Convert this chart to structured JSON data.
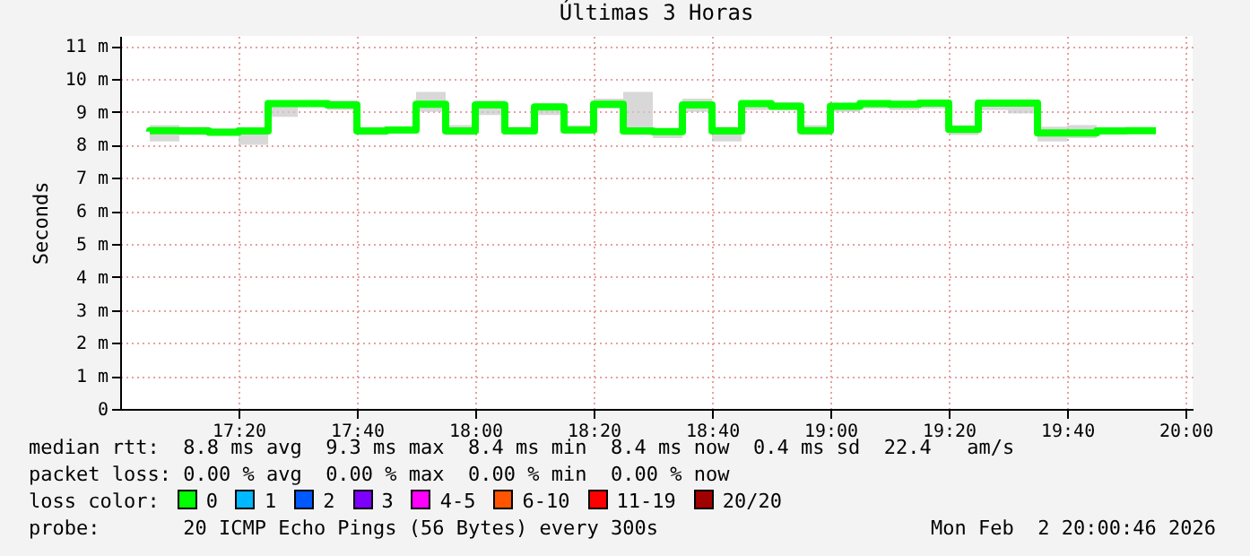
{
  "chart_data": {
    "type": "step",
    "title": "Últimas 3 Horas",
    "ylabel": "Seconds",
    "x": [
      17.0833,
      17.1667,
      17.25,
      17.3333,
      17.4167,
      17.5,
      17.5833,
      17.6667,
      17.75,
      17.8333,
      17.9167,
      18,
      18.0833,
      18.1667,
      18.25,
      18.3333,
      18.4167,
      18.5,
      18.5833,
      18.6667,
      18.75,
      18.8333,
      18.9167,
      19,
      19.0833,
      19.1667,
      19.25,
      19.3333,
      19.4167,
      19.5,
      19.5833,
      19.6667,
      19.75,
      19.8333,
      19.9167
    ],
    "series": [
      {
        "color": "#00ff00",
        "values": [
          8.4,
          8.43,
          8.42,
          8.38,
          8.42,
          9.25,
          9.25,
          9.21,
          8.42,
          8.45,
          9.23,
          8.42,
          9.21,
          8.42,
          9.15,
          8.45,
          9.23,
          8.42,
          8.4,
          9.21,
          8.42,
          9.25,
          9.17,
          8.43,
          9.17,
          9.25,
          9.23,
          9.26,
          8.47,
          9.26,
          9.26,
          8.36,
          8.36,
          8.42,
          8.43
        ],
        "lower": [
          8.35,
          8.1,
          8.3,
          8.3,
          8.0,
          8.85,
          9.2,
          9.05,
          8.3,
          8.4,
          9.0,
          8.3,
          8.9,
          8.4,
          8.9,
          8.4,
          9.1,
          8.3,
          8.2,
          9.0,
          8.1,
          9.05,
          9.05,
          8.3,
          9.0,
          9.1,
          9.05,
          9.1,
          8.3,
          9.05,
          8.95,
          8.1,
          8.2,
          8.35,
          8.4
        ],
        "upper": [
          8.45,
          8.6,
          8.55,
          8.5,
          8.45,
          9.3,
          9.3,
          9.35,
          8.45,
          8.5,
          9.6,
          8.6,
          9.35,
          8.55,
          9.25,
          8.6,
          9.4,
          9.6,
          8.45,
          9.4,
          8.55,
          9.3,
          9.3,
          8.6,
          9.2,
          9.3,
          9.3,
          9.35,
          8.6,
          9.35,
          9.3,
          8.55,
          8.6,
          8.5,
          8.5
        ]
      }
    ],
    "xlim": [
      17,
      20.02
    ],
    "xticks": [
      {
        "value": 17.3333,
        "label": "17:20"
      },
      {
        "value": 17.6667,
        "label": "17:40"
      },
      {
        "value": 18,
        "label": "18:00"
      },
      {
        "value": 18.3333,
        "label": "18:20"
      },
      {
        "value": 18.6667,
        "label": "18:40"
      },
      {
        "value": 19,
        "label": "19:00"
      },
      {
        "value": 19.3333,
        "label": "19:20"
      },
      {
        "value": 19.6667,
        "label": "19:40"
      },
      {
        "value": 20,
        "label": "20:00"
      }
    ],
    "ylim": [
      0,
      11.3
    ],
    "yticks": [
      0,
      {
        "value": 1,
        "label": "1 m"
      },
      {
        "value": 2,
        "label": "2 m"
      },
      {
        "value": 3,
        "label": "3 m"
      },
      {
        "value": 4,
        "label": "4 m"
      },
      {
        "value": 5,
        "label": "5 m"
      },
      {
        "value": 6,
        "label": "6 m"
      },
      {
        "value": 7,
        "label": "7 m"
      },
      {
        "value": 8,
        "label": "8 m"
      },
      {
        "value": 9,
        "label": "9 m"
      },
      {
        "value": 10,
        "label": "10 m"
      },
      {
        "value": 11,
        "label": "11 m"
      }
    ],
    "grid": true,
    "annotations": [
      "median rtt:  8.8 ms avg  9.3 ms max  8.4 ms min  8.4 ms now  0.4 ms sd  22.4   am/s",
      "packet loss: 0.00 % avg  0.00 % max  0.00 % min  0.00 % now",
      "loss color:",
      "0",
      "1",
      "2",
      "3",
      "4-5",
      "6-10",
      "11-19",
      "20/20",
      "probe:       20 ICMP Echo Pings (56 Bytes) every 300s",
      "Mon Feb  2 20:00:46 2026"
    ]
  }
}
